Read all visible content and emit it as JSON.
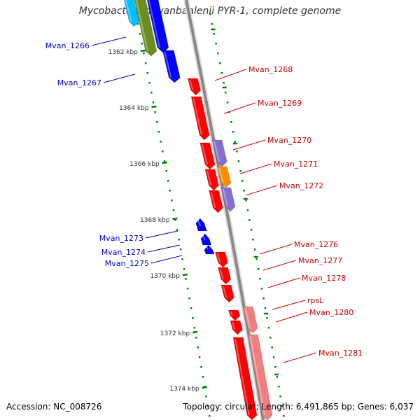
{
  "title": "Mycobacterium vanbaalenii PYR-1, complete genome",
  "accession": "Accession: NC_008726",
  "topology": "Topology: circular; Length: 6,491,865 bp; Genes: 6,037",
  "colors": {
    "forward_gene": "#ff0000",
    "reverse_gene": "#0000ff",
    "forward_label": "#cc0000",
    "reverse_label": "#0000cc",
    "tick": "#008000",
    "backbone": "#888888",
    "purple": "#8470cc",
    "orange": "#ff8c00",
    "pink": "#f08080",
    "olive": "#6b8e23",
    "cyan": "#00bfff"
  },
  "scale": {
    "labels": [
      {
        "text": "1362 kbp"
      },
      {
        "text": "1364 kbp"
      },
      {
        "text": "1366 kbp"
      },
      {
        "text": "1368 kbp"
      },
      {
        "text": "1370 kbp"
      },
      {
        "text": "1372 kbp"
      },
      {
        "text": "1374 kbp"
      }
    ]
  },
  "left_labels": [
    {
      "text": "Mvan_1266"
    },
    {
      "text": "Mvan_1267"
    },
    {
      "text": "Mvan_1273"
    },
    {
      "text": "Mvan_1274"
    },
    {
      "text": "Mvan_1275"
    }
  ],
  "right_labels": [
    {
      "text": "Mvan_1268"
    },
    {
      "text": "Mvan_1269"
    },
    {
      "text": "Mvan_1270"
    },
    {
      "text": "Mvan_1271"
    },
    {
      "text": "Mvan_1272"
    },
    {
      "text": "Mvan_1276"
    },
    {
      "text": "Mvan_1277"
    },
    {
      "text": "Mvan_1278"
    },
    {
      "text": "rpsL"
    },
    {
      "text": "Mvan_1280"
    },
    {
      "text": "Mvan_1281"
    }
  ]
}
